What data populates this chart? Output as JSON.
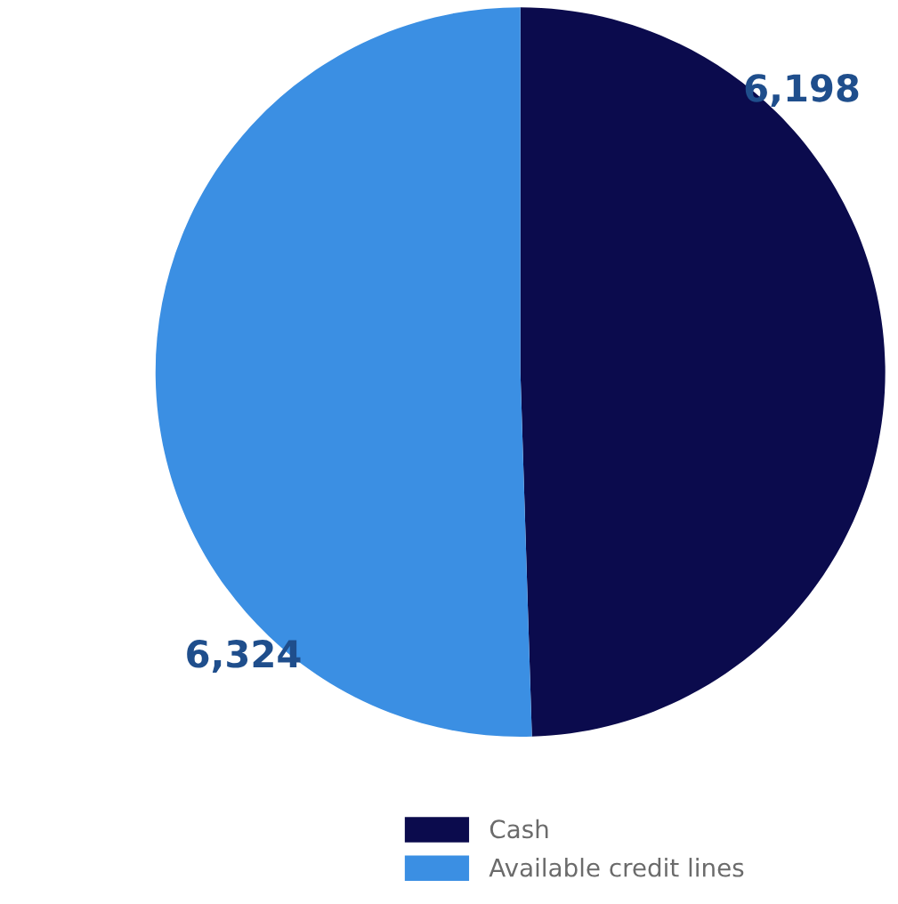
{
  "chart_data": {
    "type": "pie",
    "categories": [
      "Cash",
      "Available credit lines"
    ],
    "values": [
      6198,
      6324
    ],
    "value_labels": [
      "6,198",
      "6,324"
    ],
    "colors": [
      "#0b0b4d",
      "#3b8fe3"
    ],
    "legend": "bottom"
  }
}
